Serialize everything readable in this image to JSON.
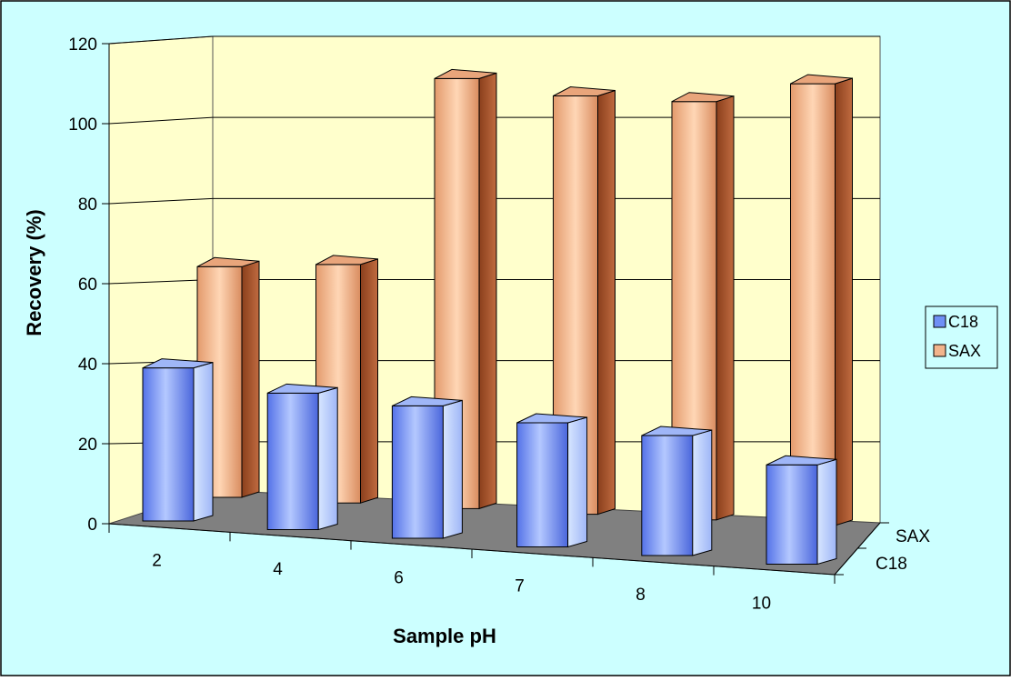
{
  "colors": {
    "background": "#ccffff",
    "wall": "#ffffcc",
    "floor": "#808080",
    "c18": "#6f8ff5",
    "sax": "#f2b48c"
  },
  "chart_data": {
    "type": "bar",
    "subtype": "3d-clustered-depth",
    "title": "",
    "xlabel": "Sample pH",
    "ylabel": "Recovery (%)",
    "ylim": [
      0,
      120
    ],
    "y_ticks": [
      "0",
      "20",
      "40",
      "60",
      "80",
      "100",
      "120"
    ],
    "categories": [
      "2",
      "4",
      "6",
      "7",
      "8",
      "10"
    ],
    "depth_labels": [
      "SAX",
      "C18"
    ],
    "grid": true,
    "legend_position": "right",
    "series": [
      {
        "name": "C18",
        "values": [
          37,
          33,
          32,
          30,
          29,
          24
        ],
        "color": "#6f8ff5"
      },
      {
        "name": "SAX",
        "values": [
          59,
          61,
          110,
          107,
          107,
          113
        ],
        "color": "#f2b48c"
      }
    ]
  }
}
